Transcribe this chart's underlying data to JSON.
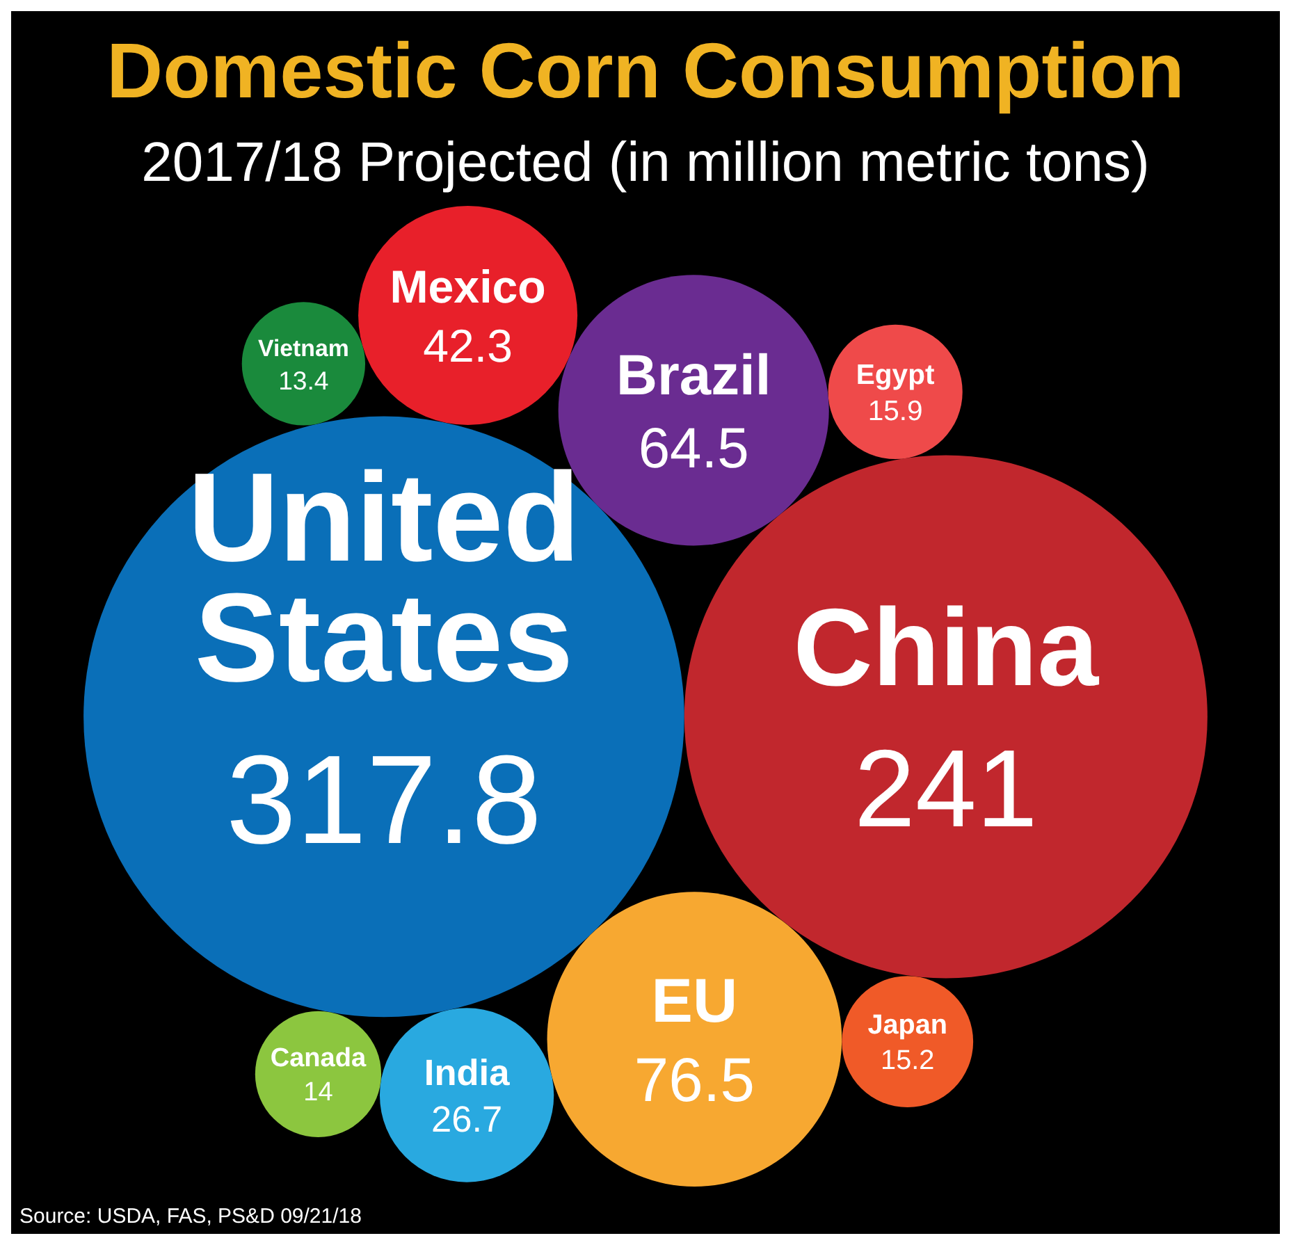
{
  "chart_data": {
    "type": "other",
    "title": "Domestic Corn Consumption",
    "subtitle": "2017/18 Projected (in million metric tons)",
    "categories": [
      "United States",
      "China",
      "EU",
      "Brazil",
      "Mexico",
      "India",
      "Egypt",
      "Japan",
      "Canada",
      "Vietnam"
    ],
    "values": [
      317.8,
      241,
      76.5,
      64.5,
      42.3,
      26.7,
      15.9,
      15.2,
      14,
      13.4
    ],
    "colors": [
      "#0a6fb8",
      "#c1272d",
      "#f7a831",
      "#6a2c91",
      "#e8202a",
      "#29a9e0",
      "#ef4a4a",
      "#f05a28",
      "#8cc63f",
      "#1a8a3c"
    ],
    "data_labels": true,
    "annotations": [
      "Source: USDA, FAS, PS&D 09/21/18"
    ]
  }
}
